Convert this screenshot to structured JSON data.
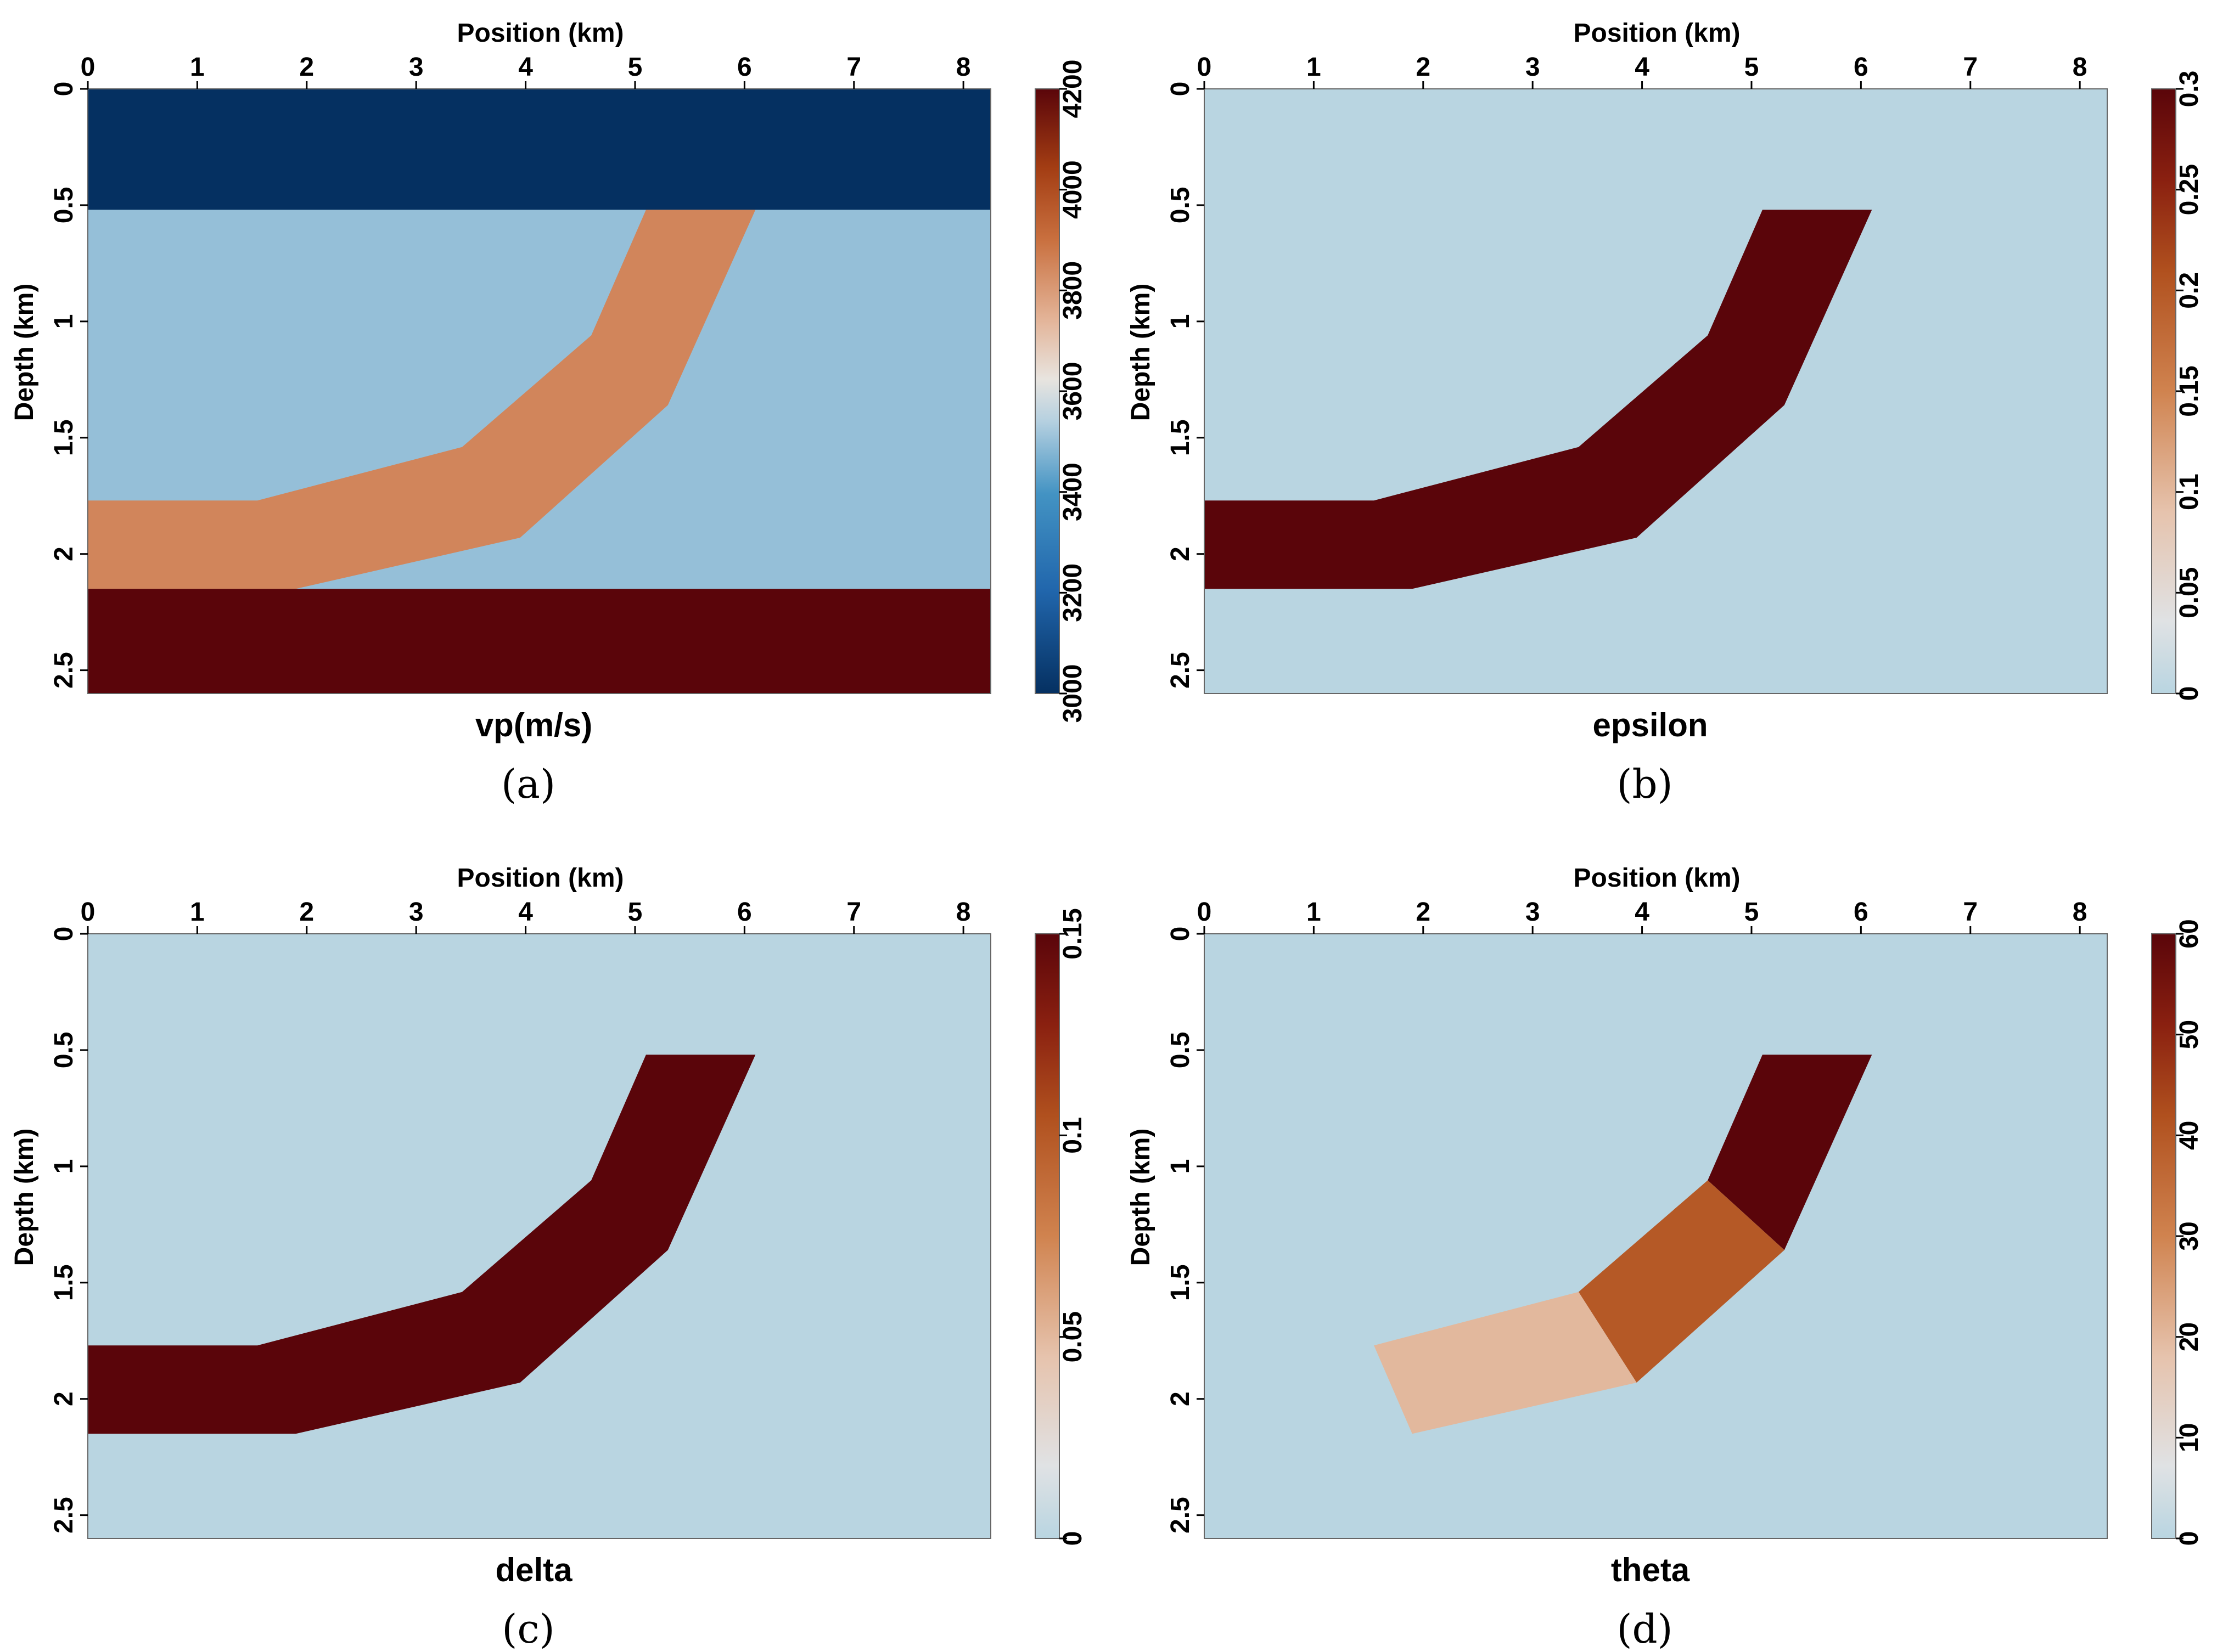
{
  "chart_data": [
    {
      "type": "heatmap",
      "tag": "(a)",
      "title": "vp(m/s)",
      "xlabel": "Position (km)",
      "ylabel": "Depth (km)",
      "xticks": [
        "0",
        "1",
        "2",
        "3",
        "4",
        "5",
        "6",
        "7",
        "8"
      ],
      "yticks": [
        "0",
        "0.5",
        "1",
        "1.5",
        "2",
        "2.5"
      ],
      "xlim": [
        0,
        8.25
      ],
      "ylim": [
        0,
        2.6
      ],
      "colorbar": {
        "min": 3000,
        "max": 4200,
        "ticks": [
          "3000",
          "3200",
          "3400",
          "3600",
          "3800",
          "4000",
          "4200"
        ],
        "colormap": "blue-white-brown"
      },
      "background_value": 3500,
      "regions": [
        {
          "name": "water-layer",
          "value": 3000,
          "polygon": [
            [
              0,
              0
            ],
            [
              8.25,
              0
            ],
            [
              8.25,
              0.52
            ],
            [
              0,
              0.52
            ]
          ]
        },
        {
          "name": "anisotropic-band",
          "value": 3850,
          "polygon": [
            [
              5.1,
              0.52
            ],
            [
              6.1,
              0.52
            ],
            [
              5.3,
              1.36
            ],
            [
              3.95,
              1.93
            ],
            [
              1.9,
              2.15
            ],
            [
              0,
              2.15
            ],
            [
              0,
              1.77
            ],
            [
              1.55,
              1.77
            ],
            [
              3.42,
              1.54
            ],
            [
              4.6,
              1.06
            ]
          ]
        },
        {
          "name": "bottom-layer",
          "value": 4200,
          "polygon": [
            [
              0,
              2.15
            ],
            [
              8.25,
              2.15
            ],
            [
              8.25,
              2.6
            ],
            [
              0,
              2.6
            ]
          ]
        }
      ]
    },
    {
      "type": "heatmap",
      "tag": "(b)",
      "title": "epsilon",
      "xlabel": "Position (km)",
      "ylabel": "Depth (km)",
      "xticks": [
        "0",
        "1",
        "2",
        "3",
        "4",
        "5",
        "6",
        "7",
        "8"
      ],
      "yticks": [
        "0",
        "0.5",
        "1",
        "1.5",
        "2",
        "2.5"
      ],
      "xlim": [
        0,
        8.25
      ],
      "ylim": [
        0,
        2.6
      ],
      "colorbar": {
        "min": 0,
        "max": 0.3,
        "ticks": [
          "0",
          "0.05",
          "0.1",
          "0.15",
          "0.2",
          "0.25",
          "0.3"
        ],
        "colormap": "white-brown"
      },
      "background_value": 0,
      "regions": [
        {
          "name": "anisotropic-band",
          "value": 0.3,
          "polygon": [
            [
              5.1,
              0.52
            ],
            [
              6.1,
              0.52
            ],
            [
              5.3,
              1.36
            ],
            [
              3.95,
              1.93
            ],
            [
              1.9,
              2.15
            ],
            [
              0,
              2.15
            ],
            [
              0,
              1.77
            ],
            [
              1.55,
              1.77
            ],
            [
              3.42,
              1.54
            ],
            [
              4.6,
              1.06
            ]
          ]
        }
      ]
    },
    {
      "type": "heatmap",
      "tag": "(c)",
      "title": "delta",
      "xlabel": "Position (km)",
      "ylabel": "Depth (km)",
      "xticks": [
        "0",
        "1",
        "2",
        "3",
        "4",
        "5",
        "6",
        "7",
        "8"
      ],
      "yticks": [
        "0",
        "0.5",
        "1",
        "1.5",
        "2",
        "2.5"
      ],
      "xlim": [
        0,
        8.25
      ],
      "ylim": [
        0,
        2.6
      ],
      "colorbar": {
        "min": 0,
        "max": 0.15,
        "ticks": [
          "0",
          "0.05",
          "0.1",
          "0.15"
        ],
        "colormap": "white-brown"
      },
      "background_value": 0,
      "regions": [
        {
          "name": "anisotropic-band",
          "value": 0.15,
          "polygon": [
            [
              5.1,
              0.52
            ],
            [
              6.1,
              0.52
            ],
            [
              5.3,
              1.36
            ],
            [
              3.95,
              1.93
            ],
            [
              1.9,
              2.15
            ],
            [
              0,
              2.15
            ],
            [
              0,
              1.77
            ],
            [
              1.55,
              1.77
            ],
            [
              3.42,
              1.54
            ],
            [
              4.6,
              1.06
            ]
          ]
        }
      ]
    },
    {
      "type": "heatmap",
      "tag": "(d)",
      "title": "theta",
      "xlabel": "Position (km)",
      "ylabel": "Depth (km)",
      "xticks": [
        "0",
        "1",
        "2",
        "3",
        "4",
        "5",
        "6",
        "7",
        "8"
      ],
      "yticks": [
        "0",
        "0.5",
        "1",
        "1.5",
        "2",
        "2.5"
      ],
      "xlim": [
        0,
        8.25
      ],
      "ylim": [
        0,
        2.6
      ],
      "colorbar": {
        "min": 0,
        "max": 60,
        "ticks": [
          "0",
          "10",
          "20",
          "30",
          "40",
          "50",
          "60"
        ],
        "colormap": "white-brown"
      },
      "background_value": 0,
      "regions": [
        {
          "name": "tilted-segment-upper",
          "value": 60,
          "polygon": [
            [
              5.1,
              0.52
            ],
            [
              6.1,
              0.52
            ],
            [
              5.3,
              1.36
            ],
            [
              4.6,
              1.06
            ]
          ]
        },
        {
          "name": "tilted-segment-middle",
          "value": 40,
          "polygon": [
            [
              4.6,
              1.06
            ],
            [
              5.3,
              1.36
            ],
            [
              3.95,
              1.93
            ],
            [
              3.42,
              1.54
            ]
          ]
        },
        {
          "name": "tilted-segment-lower",
          "value": 20,
          "polygon": [
            [
              1.55,
              1.77
            ],
            [
              3.42,
              1.54
            ],
            [
              3.95,
              1.93
            ],
            [
              1.9,
              2.15
            ]
          ]
        }
      ]
    }
  ]
}
